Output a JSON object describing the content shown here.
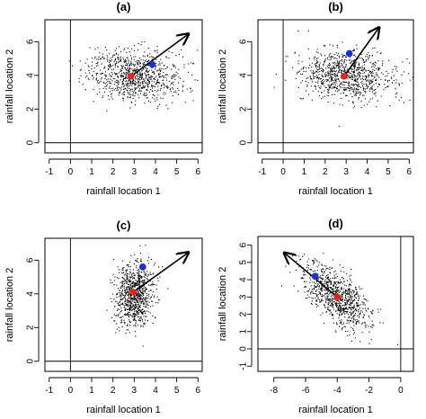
{
  "chart_data": [
    {
      "type": "scatter",
      "title": "(a)",
      "xlabel": "rainfall location 1",
      "ylabel": "rainfall location 2",
      "xlim": [
        -1.2,
        6.2
      ],
      "ylim": [
        -0.6,
        7.3
      ],
      "x_ticks": [
        -1,
        0,
        1,
        2,
        3,
        4,
        5,
        6
      ],
      "y_ticks": [
        0,
        2,
        4,
        6
      ],
      "reference_lines": {
        "x": 0,
        "y": 0
      },
      "cloud": {
        "center": [
          3,
          4
        ],
        "sd": [
          1.1,
          0.75
        ],
        "corr": -0.15,
        "n": 900
      },
      "red_point": [
        2.85,
        3.95
      ],
      "blue_point": [
        3.85,
        4.65
      ],
      "arrow": {
        "from": [
          2.85,
          3.95
        ],
        "to": [
          5.6,
          6.5
        ]
      },
      "colors": {
        "cloud": "#000000",
        "red": "#e8251c",
        "blue": "#1c2fd6"
      }
    },
    {
      "type": "scatter",
      "title": "(b)",
      "xlabel": "rainfall location 1",
      "ylabel": "rainfall location 2",
      "xlim": [
        -1.2,
        6.2
      ],
      "ylim": [
        -0.6,
        7.3
      ],
      "x_ticks": [
        -1,
        0,
        1,
        2,
        3,
        4,
        5,
        6
      ],
      "y_ticks": [
        0,
        2,
        4,
        6
      ],
      "reference_lines": {
        "x": 0,
        "y": 0
      },
      "cloud": {
        "center": [
          3,
          4
        ],
        "sd": [
          1.1,
          0.75
        ],
        "corr": -0.15,
        "n": 900
      },
      "red_point": [
        2.9,
        3.95
      ],
      "blue_point": [
        3.15,
        5.3
      ],
      "arrow": {
        "from": [
          2.9,
          3.95
        ],
        "to": [
          4.6,
          6.9
        ]
      },
      "colors": {
        "cloud": "#000000",
        "red": "#e8251c",
        "blue": "#1c2fd6"
      }
    },
    {
      "type": "scatter",
      "title": "(c)",
      "xlabel": "rainfall location 1",
      "ylabel": "rainfall location 2",
      "xlim": [
        -1.2,
        6.2
      ],
      "ylim": [
        -0.6,
        7.3
      ],
      "x_ticks": [
        -1,
        0,
        1,
        2,
        3,
        4,
        5,
        6
      ],
      "y_ticks": [
        0,
        2,
        4,
        6
      ],
      "reference_lines": {
        "x": 0,
        "y": 0
      },
      "cloud": {
        "center": [
          3,
          4
        ],
        "sd": [
          0.45,
          0.95
        ],
        "corr": 0.1,
        "n": 900
      },
      "red_point": [
        2.95,
        4.1
      ],
      "blue_point": [
        3.4,
        5.6
      ],
      "arrow": {
        "from": [
          2.95,
          4.1
        ],
        "to": [
          5.6,
          6.5
        ]
      },
      "colors": {
        "cloud": "#000000",
        "red": "#e8251c",
        "blue": "#1c2fd6"
      }
    },
    {
      "type": "scatter",
      "title": "(d)",
      "xlabel": "rainfall location 1",
      "ylabel": "rainfall location 2",
      "xlim": [
        -9,
        0.8
      ],
      "ylim": [
        -1.3,
        6.5
      ],
      "x_ticks": [
        -8,
        -6,
        -4,
        -2,
        0
      ],
      "y_ticks": [
        -1,
        0,
        1,
        2,
        3,
        4,
        5,
        6
      ],
      "reference_lines": {
        "x": 0,
        "y": 0
      },
      "cloud": {
        "center": [
          -4,
          3
        ],
        "sd": [
          1.1,
          1.0
        ],
        "corr": -0.65,
        "n": 900
      },
      "red_point": [
        -4.0,
        3.0
      ],
      "blue_point": [
        -5.4,
        4.2
      ],
      "arrow": {
        "from": [
          -4.0,
          3.0
        ],
        "to": [
          -7.4,
          5.6
        ]
      },
      "colors": {
        "cloud": "#000000",
        "red": "#e8251c",
        "blue": "#1c2fd6"
      }
    }
  ]
}
